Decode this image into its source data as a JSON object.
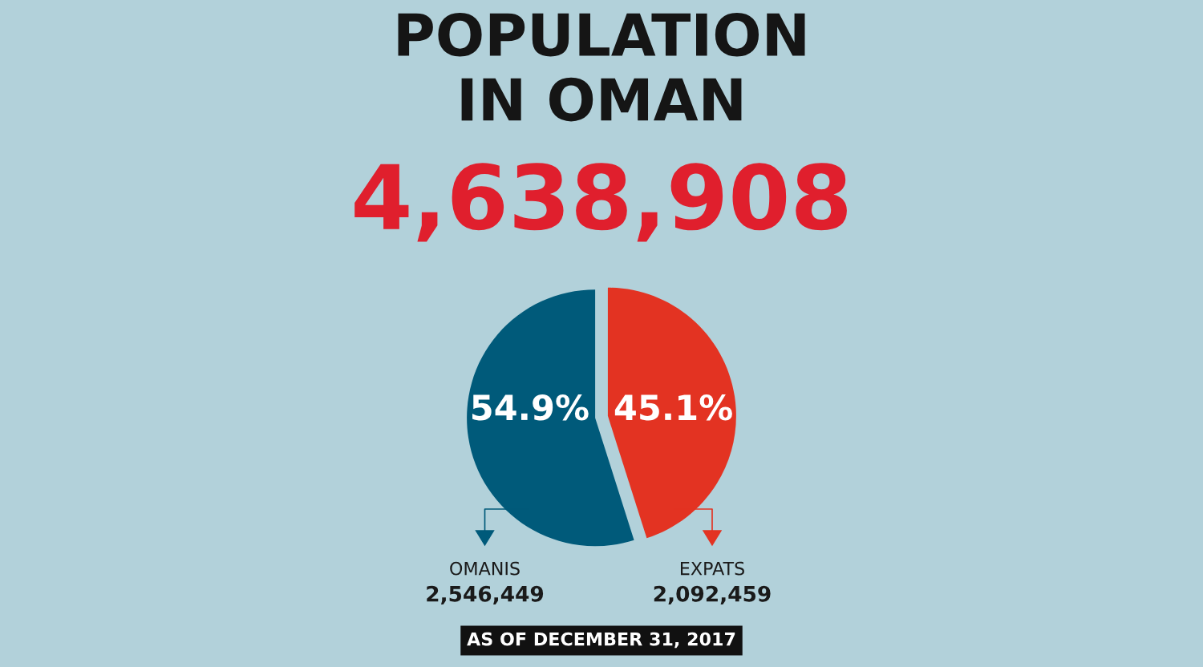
{
  "chart_data": {
    "type": "pie",
    "title": "POPULATION\nIN OMAN",
    "subtitle": "4,638,908",
    "categories": [
      "OMANIS",
      "EXPATS"
    ],
    "values": [
      54.9,
      45.1
    ],
    "colors": [
      "#005a7a",
      "#e33322"
    ],
    "value_labels": [
      "54.9%",
      "45.1%"
    ],
    "legend": "bottom",
    "annotations": [
      {
        "text": "2,546,449",
        "x": "OMANIS"
      },
      {
        "text": "2,092,459",
        "x": "EXPATS"
      },
      "AS OF DECEMBER 31, 2017"
    ]
  }
}
